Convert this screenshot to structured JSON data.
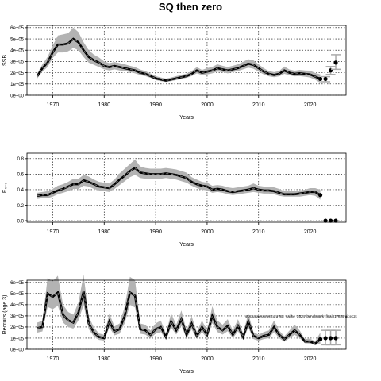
{
  "title": "SQ then zero",
  "chart_data": [
    {
      "type": "line",
      "ylabel": "SSB",
      "xlabel": "Years",
      "xlim": [
        1965,
        2027
      ],
      "ylim": [
        0,
        620000
      ],
      "xticks": [
        1970,
        1980,
        1990,
        2000,
        2010,
        2020
      ],
      "xtick_labels": [
        "1970",
        "1980",
        "1990",
        "2000",
        "2010",
        "2020"
      ],
      "yticks": [
        0,
        100000,
        200000,
        300000,
        400000,
        500000,
        600000
      ],
      "ytick_labels": [
        "0e+00",
        "1e+05",
        "2e+05",
        "3e+05",
        "4e+05",
        "5e+05",
        "6e+05"
      ],
      "grid": true,
      "x": [
        1967,
        1968,
        1969,
        1970,
        1971,
        1972,
        1973,
        1974,
        1975,
        1976,
        1977,
        1978,
        1979,
        1980,
        1981,
        1982,
        1983,
        1984,
        1985,
        1986,
        1987,
        1988,
        1989,
        1990,
        1991,
        1992,
        1993,
        1994,
        1995,
        1996,
        1997,
        1998,
        1999,
        2000,
        2001,
        2002,
        2003,
        2004,
        2005,
        2006,
        2007,
        2008,
        2009,
        2010,
        2011,
        2012,
        2013,
        2014,
        2015,
        2016,
        2017,
        2018,
        2019,
        2020,
        2021,
        2022
      ],
      "estimate": [
        170000,
        240000,
        290000,
        380000,
        450000,
        450000,
        460000,
        500000,
        470000,
        400000,
        340000,
        310000,
        290000,
        260000,
        250000,
        260000,
        250000,
        240000,
        230000,
        220000,
        200000,
        190000,
        170000,
        150000,
        140000,
        130000,
        140000,
        150000,
        160000,
        170000,
        190000,
        220000,
        200000,
        210000,
        220000,
        240000,
        230000,
        220000,
        230000,
        240000,
        260000,
        280000,
        270000,
        240000,
        210000,
        190000,
        180000,
        190000,
        220000,
        200000,
        190000,
        195000,
        190000,
        185000,
        165000,
        145000
      ],
      "lower": [
        150000,
        210000,
        250000,
        330000,
        380000,
        380000,
        390000,
        420000,
        400000,
        340000,
        290000,
        270000,
        250000,
        230000,
        220000,
        230000,
        220000,
        215000,
        205000,
        195000,
        180000,
        170000,
        155000,
        135000,
        125000,
        118000,
        125000,
        135000,
        145000,
        155000,
        170000,
        195000,
        180000,
        185000,
        195000,
        210000,
        205000,
        195000,
        205000,
        215000,
        230000,
        245000,
        235000,
        210000,
        185000,
        168000,
        160000,
        168000,
        190000,
        178000,
        168000,
        170000,
        165000,
        158000,
        138000,
        110000
      ],
      "upper": [
        195000,
        275000,
        340000,
        440000,
        530000,
        540000,
        550000,
        600000,
        560000,
        470000,
        400000,
        360000,
        335000,
        300000,
        285000,
        295000,
        285000,
        275000,
        262000,
        250000,
        228000,
        215000,
        193000,
        170000,
        158000,
        148000,
        158000,
        170000,
        180000,
        192000,
        215000,
        250000,
        225000,
        240000,
        252000,
        275000,
        262000,
        250000,
        262000,
        275000,
        298000,
        320000,
        310000,
        275000,
        240000,
        215000,
        205000,
        215000,
        255000,
        228000,
        218000,
        225000,
        220000,
        218000,
        198000,
        185000
      ],
      "projection_x": [
        2023,
        2024,
        2025
      ],
      "projection": [
        145000,
        220000,
        290000
      ],
      "projection_lower": [
        120000,
        185000,
        230000
      ],
      "projection_upper": [
        165000,
        255000,
        360000
      ]
    },
    {
      "type": "line",
      "ylabel": "F₄₋₇",
      "xlabel": "Years",
      "xlim": [
        1965,
        2027
      ],
      "ylim": [
        -0.02,
        0.87
      ],
      "xticks": [
        1970,
        1980,
        1990,
        2000,
        2010,
        2020
      ],
      "xtick_labels": [
        "1970",
        "1980",
        "1990",
        "2000",
        "2010",
        "2020"
      ],
      "yticks": [
        0,
        0.2,
        0.4,
        0.6,
        0.8
      ],
      "ytick_labels": [
        "0.0",
        "0.2",
        "0.4",
        "0.6",
        "0.8"
      ],
      "grid": true,
      "x": [
        1967,
        1968,
        1969,
        1970,
        1971,
        1972,
        1973,
        1974,
        1975,
        1976,
        1977,
        1978,
        1979,
        1980,
        1981,
        1982,
        1983,
        1984,
        1985,
        1986,
        1987,
        1988,
        1989,
        1990,
        1991,
        1992,
        1993,
        1994,
        1995,
        1996,
        1997,
        1998,
        1999,
        2000,
        2001,
        2002,
        2003,
        2004,
        2005,
        2006,
        2007,
        2008,
        2009,
        2010,
        2011,
        2012,
        2013,
        2014,
        2015,
        2016,
        2017,
        2018,
        2019,
        2020,
        2021,
        2022
      ],
      "estimate": [
        0.32,
        0.33,
        0.33,
        0.36,
        0.39,
        0.41,
        0.44,
        0.47,
        0.47,
        0.52,
        0.5,
        0.47,
        0.44,
        0.43,
        0.42,
        0.47,
        0.53,
        0.58,
        0.64,
        0.68,
        0.62,
        0.61,
        0.6,
        0.6,
        0.6,
        0.61,
        0.6,
        0.59,
        0.57,
        0.55,
        0.5,
        0.47,
        0.45,
        0.44,
        0.4,
        0.41,
        0.4,
        0.38,
        0.37,
        0.38,
        0.39,
        0.4,
        0.42,
        0.4,
        0.39,
        0.39,
        0.38,
        0.36,
        0.34,
        0.34,
        0.34,
        0.35,
        0.36,
        0.37,
        0.37,
        0.33
      ],
      "lower": [
        0.28,
        0.29,
        0.29,
        0.31,
        0.34,
        0.36,
        0.38,
        0.41,
        0.41,
        0.45,
        0.44,
        0.41,
        0.39,
        0.38,
        0.37,
        0.41,
        0.46,
        0.51,
        0.56,
        0.59,
        0.55,
        0.54,
        0.54,
        0.54,
        0.54,
        0.55,
        0.54,
        0.53,
        0.51,
        0.49,
        0.45,
        0.42,
        0.4,
        0.39,
        0.36,
        0.37,
        0.36,
        0.34,
        0.33,
        0.34,
        0.35,
        0.36,
        0.37,
        0.36,
        0.35,
        0.35,
        0.34,
        0.32,
        0.31,
        0.31,
        0.31,
        0.31,
        0.32,
        0.33,
        0.32,
        0.27
      ],
      "upper": [
        0.36,
        0.37,
        0.38,
        0.41,
        0.45,
        0.47,
        0.5,
        0.54,
        0.54,
        0.59,
        0.57,
        0.53,
        0.5,
        0.49,
        0.48,
        0.53,
        0.61,
        0.67,
        0.73,
        0.79,
        0.7,
        0.68,
        0.67,
        0.67,
        0.67,
        0.68,
        0.67,
        0.66,
        0.64,
        0.62,
        0.56,
        0.53,
        0.5,
        0.49,
        0.45,
        0.46,
        0.45,
        0.43,
        0.42,
        0.43,
        0.44,
        0.45,
        0.48,
        0.45,
        0.44,
        0.44,
        0.43,
        0.41,
        0.38,
        0.38,
        0.38,
        0.39,
        0.4,
        0.42,
        0.42,
        0.4
      ],
      "projection_x": [
        2023,
        2024,
        2025
      ],
      "projection": [
        0,
        0,
        0
      ],
      "projection_lower": [
        0,
        0,
        0
      ],
      "projection_upper": [
        0,
        0,
        0
      ]
    },
    {
      "type": "line",
      "ylabel": "Recruits (age 3)",
      "xlabel": "Years",
      "xlim": [
        1965,
        2027
      ],
      "ylim": [
        0,
        620000
      ],
      "xticks": [
        1970,
        1980,
        1990,
        2000,
        2010,
        2020
      ],
      "xtick_labels": [
        "1970",
        "1980",
        "1990",
        "2000",
        "2010",
        "2020"
      ],
      "yticks": [
        0,
        100000,
        200000,
        300000,
        400000,
        500000,
        600000
      ],
      "ytick_labels": [
        "0e+00",
        "1e+05",
        "2e+05",
        "3e+05",
        "4e+05",
        "5e+05",
        "6e+05"
      ],
      "grid": true,
      "annotation": "stockassessment.org NS_saithe_2024_benchmark_final r17829 git:ec2c",
      "x": [
        1967,
        1968,
        1969,
        1970,
        1971,
        1972,
        1973,
        1974,
        1975,
        1976,
        1977,
        1978,
        1979,
        1980,
        1981,
        1982,
        1983,
        1984,
        1985,
        1986,
        1987,
        1988,
        1989,
        1990,
        1991,
        1992,
        1993,
        1994,
        1995,
        1996,
        1997,
        1998,
        1999,
        2000,
        2001,
        2002,
        2003,
        2004,
        2005,
        2006,
        2007,
        2008,
        2009,
        2010,
        2011,
        2012,
        2013,
        2014,
        2015,
        2016,
        2017,
        2018,
        2019,
        2020,
        2021,
        2022
      ],
      "estimate": [
        190000,
        200000,
        500000,
        470000,
        510000,
        310000,
        260000,
        240000,
        330000,
        520000,
        230000,
        150000,
        110000,
        100000,
        250000,
        160000,
        180000,
        300000,
        510000,
        480000,
        180000,
        170000,
        130000,
        180000,
        200000,
        110000,
        250000,
        170000,
        270000,
        130000,
        230000,
        120000,
        200000,
        130000,
        300000,
        200000,
        170000,
        210000,
        130000,
        210000,
        110000,
        250000,
        120000,
        100000,
        120000,
        130000,
        200000,
        130000,
        90000,
        130000,
        170000,
        130000,
        70000,
        70000,
        50000,
        90000
      ],
      "lower": [
        150000,
        160000,
        380000,
        360000,
        390000,
        240000,
        200000,
        185000,
        260000,
        400000,
        180000,
        115000,
        85000,
        78000,
        195000,
        125000,
        140000,
        235000,
        400000,
        375000,
        140000,
        132000,
        100000,
        140000,
        155000,
        85000,
        195000,
        132000,
        210000,
        100000,
        178000,
        93000,
        155000,
        100000,
        235000,
        155000,
        132000,
        162000,
        100000,
        162000,
        85000,
        195000,
        92000,
        77000,
        92000,
        100000,
        155000,
        100000,
        69000,
        100000,
        130000,
        100000,
        54000,
        52000,
        36000,
        50000
      ],
      "upper": [
        240000,
        255000,
        640000,
        610000,
        660000,
        400000,
        335000,
        310000,
        420000,
        670000,
        295000,
        195000,
        142000,
        130000,
        320000,
        205000,
        232000,
        385000,
        650000,
        620000,
        232000,
        220000,
        168000,
        232000,
        258000,
        142000,
        322000,
        220000,
        348000,
        168000,
        297000,
        155000,
        258000,
        168000,
        385000,
        258000,
        220000,
        270000,
        168000,
        270000,
        142000,
        322000,
        155000,
        130000,
        155000,
        168000,
        258000,
        168000,
        117000,
        168000,
        220000,
        168000,
        92000,
        95000,
        72000,
        150000
      ],
      "projection_x": [
        2023,
        2024,
        2025
      ],
      "projection": [
        100000,
        100000,
        100000
      ],
      "projection_lower": [
        40000,
        40000,
        40000
      ],
      "projection_upper": [
        170000,
        170000,
        170000
      ]
    }
  ]
}
